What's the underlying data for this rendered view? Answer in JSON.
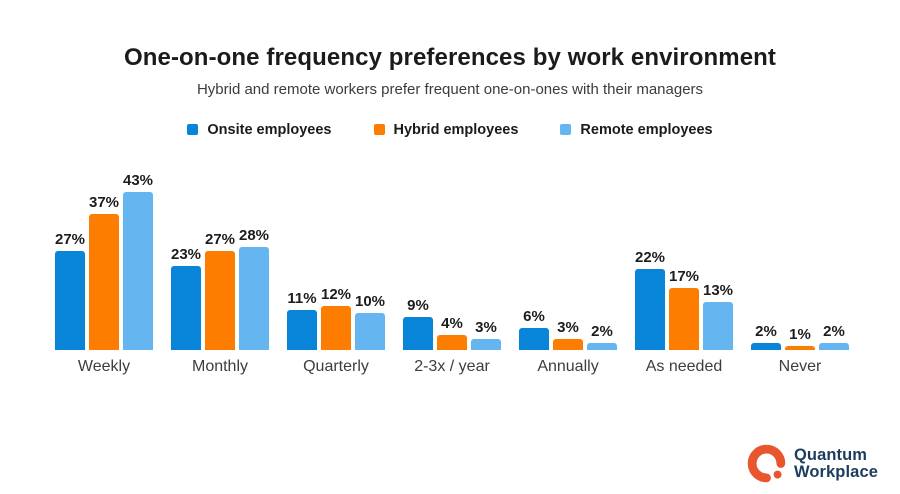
{
  "chart": {
    "title": "One-on-one frequency preferences by work environment",
    "subtitle": "Hybrid and remote workers prefer frequent one-on-ones with their managers"
  },
  "chart_data": {
    "type": "bar",
    "categories": [
      "Weekly",
      "Monthly",
      "Quarterly",
      "2-3x / year",
      "Annually",
      "As needed",
      "Never"
    ],
    "series": [
      {
        "name": "Onsite employees",
        "color": "#0884D8",
        "values": [
          27,
          23,
          11,
          9,
          6,
          22,
          2
        ]
      },
      {
        "name": "Hybrid employees",
        "color": "#FC7D00",
        "values": [
          37,
          27,
          12,
          4,
          3,
          17,
          1
        ]
      },
      {
        "name": "Remote employees",
        "color": "#64B5F0",
        "values": [
          43,
          28,
          10,
          3,
          2,
          13,
          2
        ]
      }
    ],
    "value_suffix": "%",
    "ylim": [
      0,
      45
    ],
    "grid": false,
    "legend_position": "top",
    "data_labels": true
  },
  "logo": {
    "line1": "Quantum",
    "line2": "Workplace",
    "mark_color": "#E8562D",
    "text_color": "#1C3C5E"
  }
}
